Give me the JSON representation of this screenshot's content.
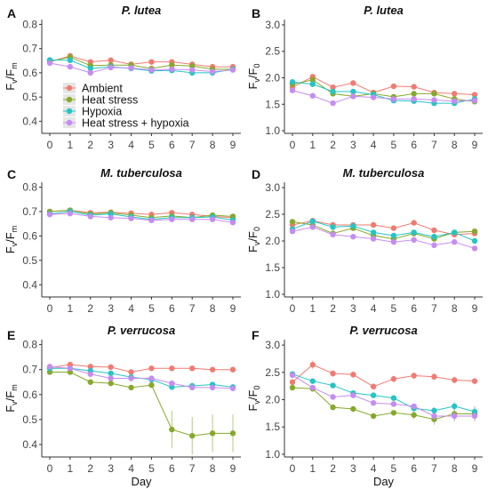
{
  "colors": {
    "Ambient": "#F07B72",
    "Heat stress": "#86A92B",
    "Hypoxia": "#26C4C3",
    "Heat stress + hypoxia": "#C58CF2",
    "axis": "#333333",
    "text": "#111111"
  },
  "legend": {
    "placement": "inside-panel-A-bottom-left",
    "entries": [
      "Ambient",
      "Heat stress",
      "Hypoxia",
      "Heat stress + hypoxia"
    ]
  },
  "chart_data": [
    {
      "panel": "A",
      "type": "line",
      "title": "P. lutea",
      "ylabel_main": "F",
      "ylabel_sub1": "v",
      "ylabel_slash": "/F",
      "ylabel_sub2": "m",
      "xlabel": "",
      "ylim": [
        0.35,
        0.82
      ],
      "yticks": [
        "0.4",
        "0.5",
        "0.6",
        "0.7",
        "0.8"
      ],
      "x": [
        0,
        1,
        2,
        3,
        4,
        5,
        6,
        7,
        8,
        9
      ],
      "xticks": [
        "0",
        "1",
        "2",
        "3",
        "4",
        "5",
        "6",
        "7",
        "8",
        "9"
      ],
      "series": [
        {
          "name": "Ambient",
          "values": [
            0.645,
            0.67,
            0.645,
            0.652,
            0.635,
            0.645,
            0.645,
            0.635,
            0.625,
            0.625
          ]
        },
        {
          "name": "Heat stress",
          "values": [
            0.648,
            0.665,
            0.63,
            0.632,
            0.632,
            0.618,
            0.632,
            0.628,
            0.615,
            0.615
          ]
        },
        {
          "name": "Hypoxia",
          "values": [
            0.653,
            0.652,
            0.618,
            0.625,
            0.618,
            0.608,
            0.61,
            0.6,
            0.6,
            0.615
          ]
        },
        {
          "name": "Heat stress + hypoxia",
          "values": [
            0.64,
            0.625,
            0.6,
            0.622,
            0.62,
            0.612,
            0.615,
            0.612,
            0.605,
            0.612
          ]
        }
      ]
    },
    {
      "panel": "B",
      "type": "line",
      "title": "P. lutea",
      "ylabel_main": "F",
      "ylabel_sub1": "v",
      "ylabel_slash": "/F",
      "ylabel_sub2": "0",
      "xlabel": "",
      "ylim": [
        0.95,
        3.1
      ],
      "yticks": [
        "1.0",
        "1.5",
        "2.0",
        "2.5",
        "3.0"
      ],
      "x": [
        0,
        1,
        2,
        3,
        4,
        5,
        6,
        7,
        8,
        9
      ],
      "xticks": [
        "0",
        "1",
        "2",
        "3",
        "4",
        "5",
        "6",
        "7",
        "8",
        "9"
      ],
      "series": [
        {
          "name": "Ambient",
          "values": [
            1.82,
            2.02,
            1.82,
            1.9,
            1.72,
            1.84,
            1.83,
            1.72,
            1.7,
            1.68
          ]
        },
        {
          "name": "Heat stress",
          "values": [
            1.88,
            1.96,
            1.7,
            1.65,
            1.7,
            1.64,
            1.7,
            1.7,
            1.6,
            1.55
          ]
        },
        {
          "name": "Hypoxia",
          "values": [
            1.92,
            1.88,
            1.74,
            1.74,
            1.68,
            1.57,
            1.56,
            1.52,
            1.52,
            1.6
          ]
        },
        {
          "name": "Heat stress + hypoxia",
          "values": [
            1.76,
            1.66,
            1.52,
            1.65,
            1.63,
            1.6,
            1.6,
            1.58,
            1.56,
            1.57
          ]
        }
      ]
    },
    {
      "panel": "C",
      "type": "line",
      "title": "M. tuberculosa",
      "ylabel_main": "F",
      "ylabel_sub1": "v",
      "ylabel_slash": "/F",
      "ylabel_sub2": "m",
      "xlabel": "",
      "ylim": [
        0.35,
        0.82
      ],
      "yticks": [
        "0.4",
        "0.5",
        "0.6",
        "0.7",
        "0.8"
      ],
      "x": [
        0,
        1,
        2,
        3,
        4,
        5,
        6,
        7,
        8,
        9
      ],
      "xticks": [
        "0",
        "1",
        "2",
        "3",
        "4",
        "5",
        "6",
        "7",
        "8",
        "9"
      ],
      "series": [
        {
          "name": "Ambient",
          "values": [
            0.7,
            0.705,
            0.695,
            0.697,
            0.693,
            0.688,
            0.695,
            0.688,
            0.68,
            0.675
          ]
        },
        {
          "name": "Heat stress",
          "values": [
            0.7,
            0.705,
            0.69,
            0.695,
            0.685,
            0.675,
            0.682,
            0.675,
            0.685,
            0.68
          ]
        },
        {
          "name": "Hypoxia",
          "values": [
            0.69,
            0.7,
            0.685,
            0.69,
            0.678,
            0.668,
            0.675,
            0.675,
            0.678,
            0.665
          ]
        },
        {
          "name": "Heat stress + hypoxia",
          "values": [
            0.688,
            0.692,
            0.68,
            0.675,
            0.672,
            0.664,
            0.668,
            0.668,
            0.668,
            0.655
          ]
        }
      ]
    },
    {
      "panel": "D",
      "type": "line",
      "title": "M. tuberculosa",
      "ylabel_main": "F",
      "ylabel_sub1": "v",
      "ylabel_slash": "/F",
      "ylabel_sub2": "0",
      "xlabel": "",
      "ylim": [
        0.95,
        3.1
      ],
      "yticks": [
        "1.0",
        "1.5",
        "2.0",
        "2.5",
        "3.0"
      ],
      "x": [
        0,
        1,
        2,
        3,
        4,
        5,
        6,
        7,
        8,
        9
      ],
      "xticks": [
        "0",
        "1",
        "2",
        "3",
        "4",
        "5",
        "6",
        "7",
        "8",
        "9"
      ],
      "series": [
        {
          "name": "Ambient",
          "values": [
            2.3,
            2.38,
            2.3,
            2.3,
            2.3,
            2.24,
            2.34,
            2.2,
            2.12,
            2.14
          ]
        },
        {
          "name": "Heat stress",
          "values": [
            2.36,
            2.3,
            2.14,
            2.24,
            2.1,
            2.04,
            2.14,
            2.04,
            2.16,
            2.18
          ]
        },
        {
          "name": "Hypoxia",
          "values": [
            2.22,
            2.37,
            2.26,
            2.28,
            2.16,
            2.1,
            2.16,
            2.08,
            2.16,
            2.0
          ]
        },
        {
          "name": "Heat stress + hypoxia",
          "values": [
            2.18,
            2.26,
            2.12,
            2.08,
            2.04,
            1.98,
            2.02,
            1.92,
            1.98,
            1.86
          ]
        }
      ]
    },
    {
      "panel": "E",
      "type": "line",
      "title": "P. verrucosa",
      "ylabel_main": "F",
      "ylabel_sub1": "v",
      "ylabel_slash": "/F",
      "ylabel_sub2": "m",
      "xlabel": "Day",
      "ylim": [
        0.35,
        0.82
      ],
      "yticks": [
        "0.4",
        "0.5",
        "0.6",
        "0.7",
        "0.8"
      ],
      "x": [
        0,
        1,
        2,
        3,
        4,
        5,
        6,
        7,
        8,
        9
      ],
      "xticks": [
        "0",
        "1",
        "2",
        "3",
        "4",
        "5",
        "6",
        "7",
        "8",
        "9"
      ],
      "series": [
        {
          "name": "Ambient",
          "values": [
            0.708,
            0.72,
            0.712,
            0.71,
            0.69,
            0.705,
            0.705,
            0.705,
            0.7,
            0.7
          ],
          "err": [
            0.008,
            0.008,
            0.008,
            0.008,
            0.008,
            0.008,
            0.008,
            0.008,
            0.008,
            0.008
          ]
        },
        {
          "name": "Heat stress",
          "values": [
            0.69,
            0.69,
            0.65,
            0.645,
            0.628,
            0.638,
            0.46,
            0.435,
            0.445,
            0.445
          ],
          "err": [
            0.008,
            0.008,
            0.008,
            0.008,
            0.008,
            0.008,
            0.075,
            0.075,
            0.075,
            0.075
          ]
        },
        {
          "name": "Hypoxia",
          "values": [
            0.705,
            0.705,
            0.695,
            0.685,
            0.67,
            0.66,
            0.63,
            0.635,
            0.64,
            0.63
          ],
          "err": [
            0.008,
            0.008,
            0.008,
            0.008,
            0.008,
            0.008,
            0.008,
            0.008,
            0.008,
            0.008
          ]
        },
        {
          "name": "Heat stress + hypoxia",
          "values": [
            0.712,
            0.705,
            0.682,
            0.665,
            0.665,
            0.665,
            0.645,
            0.628,
            0.628,
            0.625
          ],
          "err": [
            0.008,
            0.008,
            0.008,
            0.008,
            0.008,
            0.008,
            0.008,
            0.008,
            0.008,
            0.008
          ]
        }
      ]
    },
    {
      "panel": "F",
      "type": "line",
      "title": "P. verrucosa",
      "ylabel_main": "F",
      "ylabel_sub1": "v",
      "ylabel_slash": "/F",
      "ylabel_sub2": "0",
      "xlabel": "Day",
      "ylim": [
        0.95,
        3.1
      ],
      "yticks": [
        "1.0",
        "1.5",
        "2.0",
        "2.5",
        "3.0"
      ],
      "x": [
        0,
        1,
        2,
        3,
        4,
        5,
        6,
        7,
        8,
        9
      ],
      "xticks": [
        "0",
        "1",
        "2",
        "3",
        "4",
        "5",
        "6",
        "7",
        "8",
        "9"
      ],
      "series": [
        {
          "name": "Ambient",
          "values": [
            2.32,
            2.64,
            2.48,
            2.46,
            2.24,
            2.38,
            2.44,
            2.42,
            2.36,
            2.34
          ],
          "err": [
            0.06,
            0.08,
            0.06,
            0.06,
            0.06,
            0.06,
            0.06,
            0.06,
            0.06,
            0.06
          ]
        },
        {
          "name": "Heat stress",
          "values": [
            2.22,
            2.2,
            1.86,
            1.83,
            1.7,
            1.76,
            1.72,
            1.64,
            1.74,
            1.74
          ],
          "err": [
            0.04,
            0.04,
            0.04,
            0.04,
            0.04,
            0.04,
            0.08,
            0.1,
            0.14,
            0.14
          ]
        },
        {
          "name": "Hypoxia",
          "values": [
            2.47,
            2.34,
            2.26,
            2.12,
            2.08,
            2.03,
            1.84,
            1.8,
            1.88,
            1.78
          ],
          "err": [
            0.04,
            0.04,
            0.04,
            0.04,
            0.04,
            0.04,
            0.04,
            0.06,
            0.08,
            0.08
          ]
        },
        {
          "name": "Heat stress + hypoxia",
          "values": [
            2.45,
            2.22,
            2.05,
            2.08,
            1.94,
            1.92,
            1.88,
            1.7,
            1.7,
            1.7
          ],
          "err": [
            0.04,
            0.04,
            0.04,
            0.04,
            0.04,
            0.04,
            0.04,
            0.06,
            0.08,
            0.08
          ]
        }
      ]
    }
  ]
}
